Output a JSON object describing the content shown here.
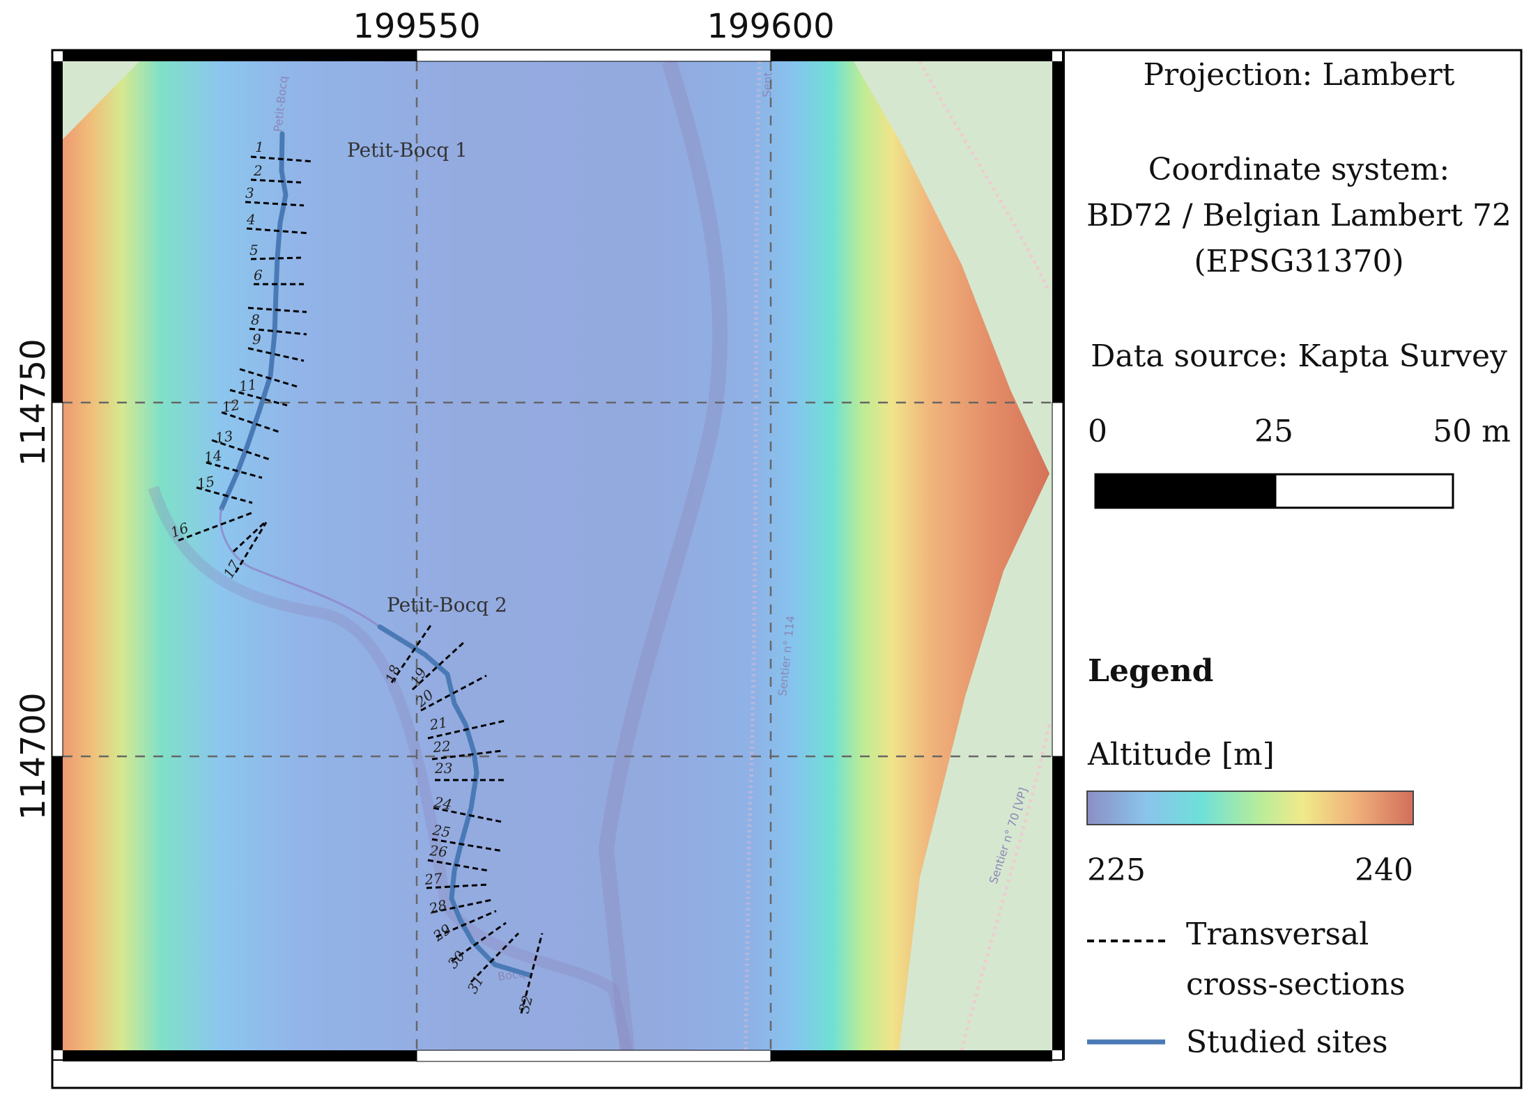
{
  "map": {
    "grid_x_labels": [
      "199550",
      "199600"
    ],
    "grid_y_labels": [
      "114750",
      "114700"
    ],
    "site_labels": [
      "Petit-Bocq 1",
      "Petit-Bocq 2"
    ],
    "road_labels": [
      "Sentier n° 114",
      "Sentier n° 70 [VP]",
      "Sent",
      "Bocq",
      "Petit-Bocq"
    ],
    "cross_sections_site1": [
      "1",
      "2",
      "3",
      "4",
      "5",
      "6",
      "8",
      "9",
      "11",
      "12",
      "13",
      "14",
      "15",
      "16",
      "17"
    ],
    "cross_sections_site2": [
      "18",
      "19",
      "20",
      "21",
      "22",
      "23",
      "24",
      "25",
      "26",
      "27",
      "28",
      "29",
      "30",
      "31",
      "32"
    ]
  },
  "legend": {
    "projection": "Projection: Lambert",
    "coord_system_line1": "Coordinate system:",
    "coord_system_line2": "BD72 / Belgian Lambert 72",
    "coord_system_line3": "(EPSG31370)",
    "data_source": "Data source: Kapta Survey",
    "scale_ticks": [
      "0",
      "25",
      "50 m"
    ],
    "title": "Legend",
    "altitude_title": "Altitude [m]",
    "altitude_min": "225",
    "altitude_max": "240",
    "cross_section_label_line1": "Transversal",
    "cross_section_label_line2": "cross-sections",
    "studied_sites_label": "Studied sites"
  },
  "colors": {
    "studied_site_line": "#4a7ab5",
    "cross_section_line": "#000000",
    "basemap_green": "#d6e7cf",
    "ramp": [
      "#8b8fc4",
      "#8ac4ec",
      "#6ee0d8",
      "#a8e8a0",
      "#f0ea8a",
      "#f0b27a",
      "#d9725a"
    ]
  }
}
